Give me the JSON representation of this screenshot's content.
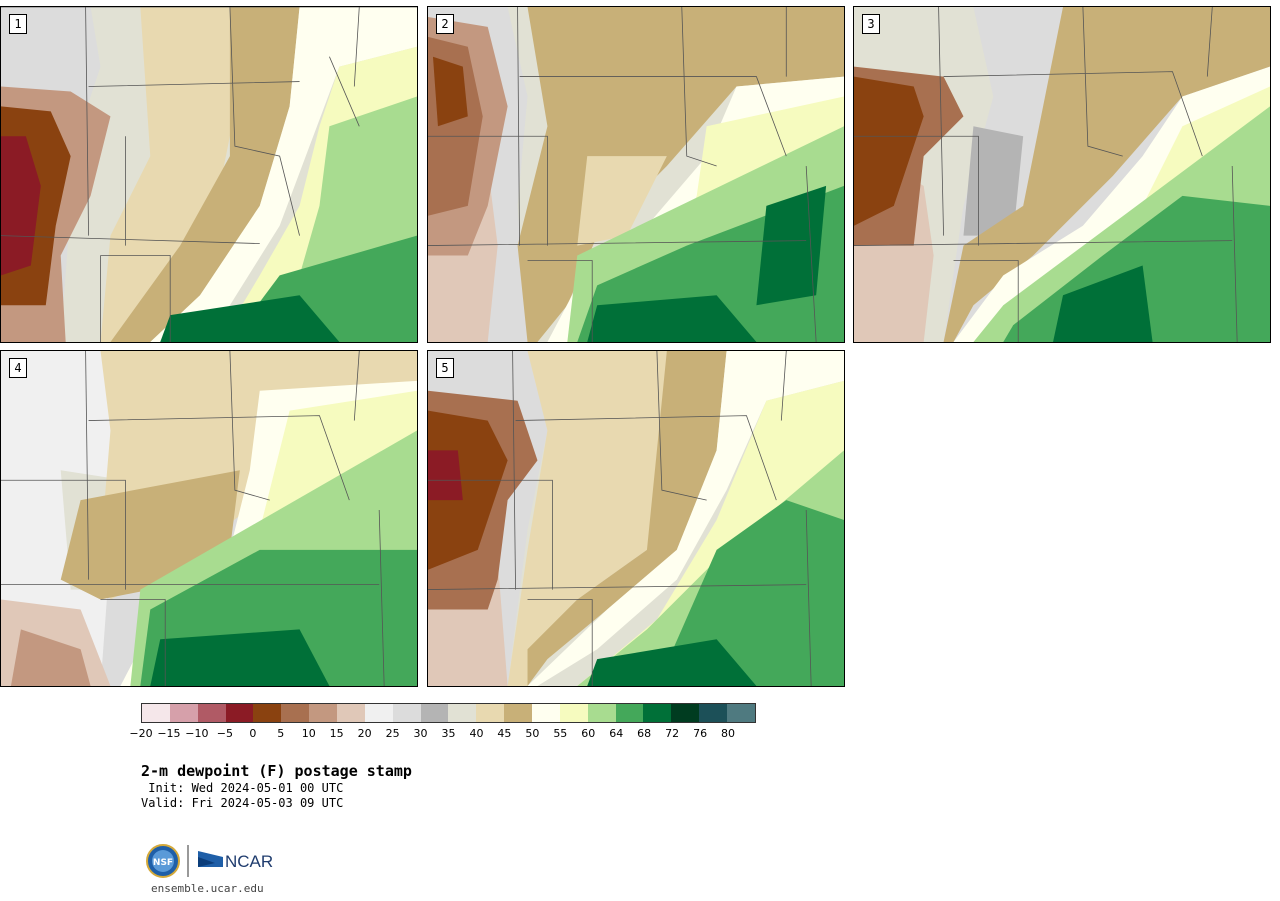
{
  "panels": [
    {
      "label": "1",
      "variant": "dry-west"
    },
    {
      "label": "2",
      "variant": "moist-south"
    },
    {
      "label": "3",
      "variant": "moist-south"
    },
    {
      "label": "4",
      "variant": "moist-south-wide"
    },
    {
      "label": "5",
      "variant": "dry-west"
    }
  ],
  "colorbar": {
    "colors": [
      "#f5e7ea",
      "#d6a0aa",
      "#b05a65",
      "#8b1b25",
      "#8a4210",
      "#a87050",
      "#c39880",
      "#e0c8b8",
      "#f0f0f0",
      "#dcdcdc",
      "#b4b4b4",
      "#e1e1d4",
      "#e8d9b0",
      "#c8b078",
      "#fffff0",
      "#f6fbbf",
      "#a8dc90",
      "#44a85a",
      "#007038",
      "#003c20",
      "#1c5058",
      "#4f7a80"
    ],
    "ticks": [
      "−20",
      "−15",
      "−10",
      "−5",
      "0",
      "5",
      "10",
      "15",
      "20",
      "25",
      "30",
      "35",
      "40",
      "45",
      "50",
      "55",
      "60",
      "64",
      "68",
      "72",
      "76",
      "80"
    ]
  },
  "title": "2-m dewpoint (F) postage stamp",
  "init": " Init: Wed 2024-05-01 00 UTC",
  "valid": "Valid: Fri 2024-05-03 09 UTC",
  "logos": {
    "left": "NSF",
    "right": "NCAR"
  },
  "site": "ensemble.ucar.edu"
}
